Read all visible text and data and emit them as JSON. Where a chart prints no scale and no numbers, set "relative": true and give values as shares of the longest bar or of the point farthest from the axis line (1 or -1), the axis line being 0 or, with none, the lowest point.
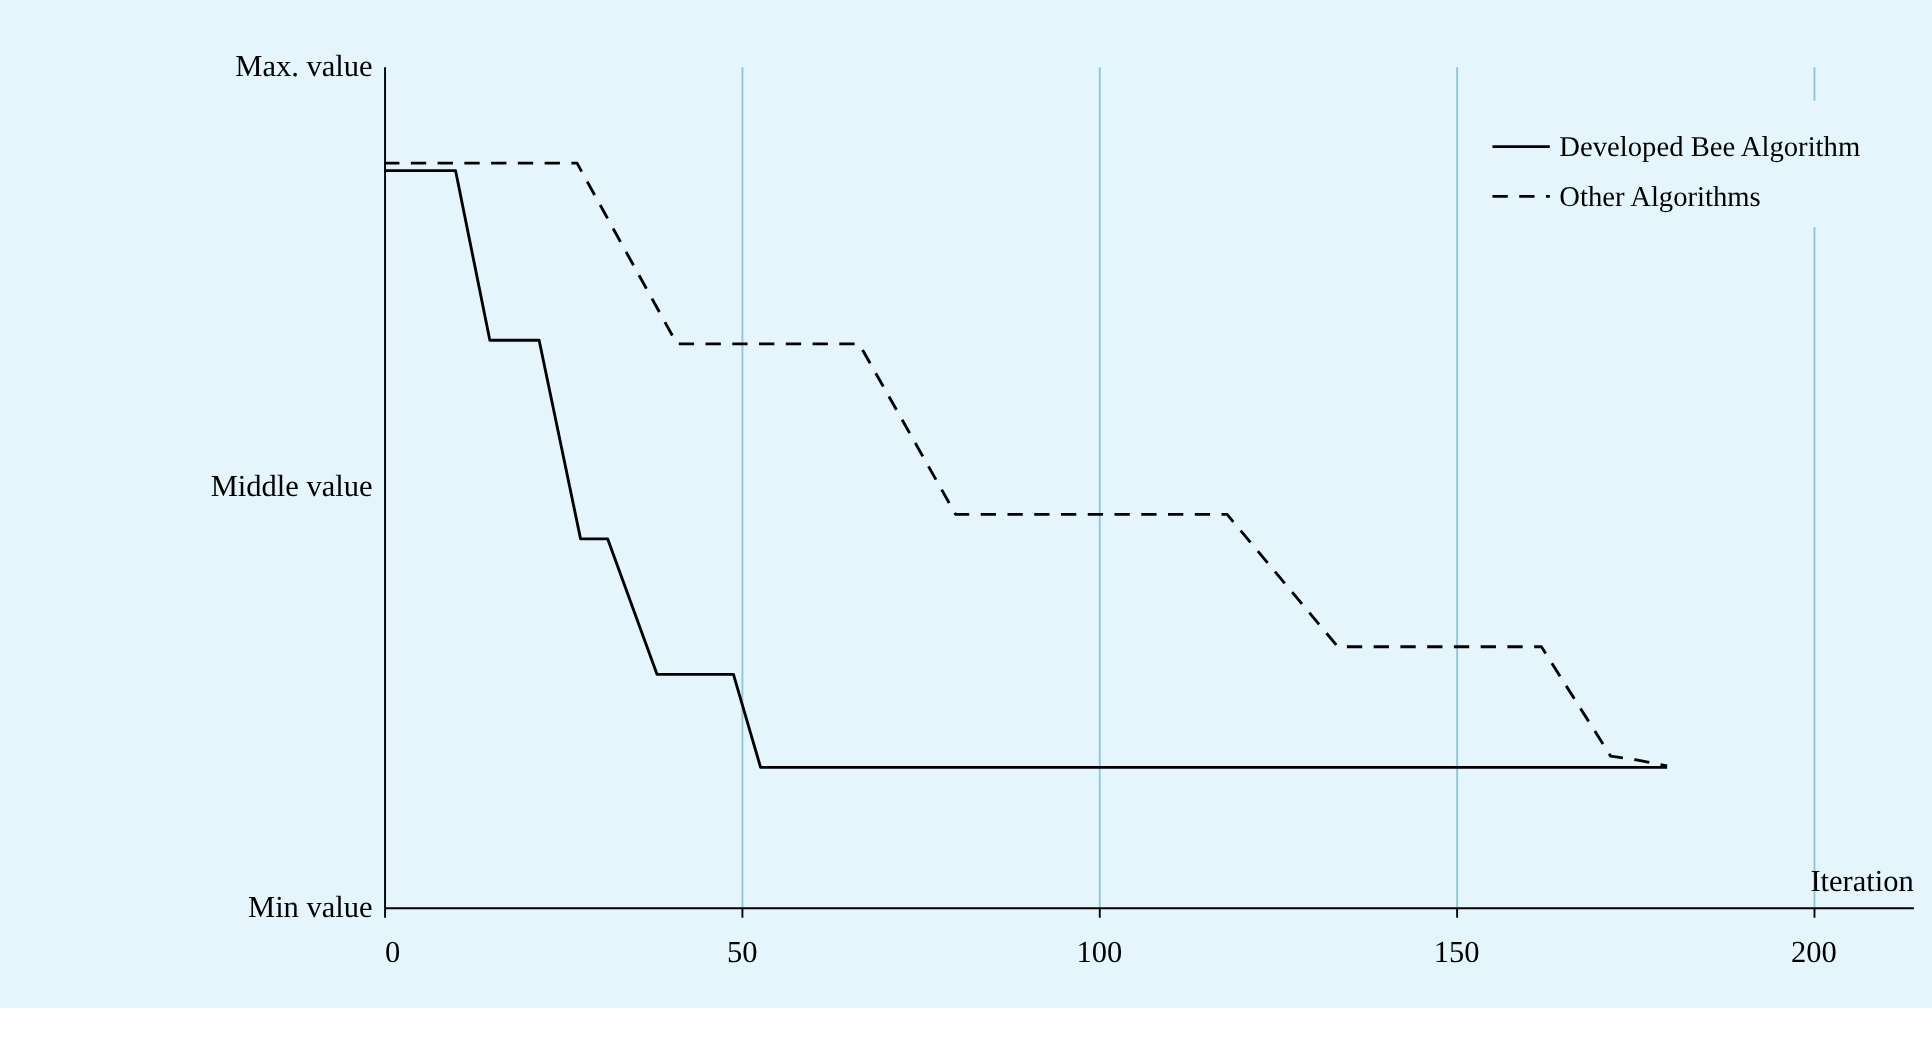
{
  "chart_data": {
    "type": "line",
    "xlabel": "Iteration",
    "relative": true,
    "xlim": [
      0,
      214
    ],
    "xticks": [
      0,
      50,
      100,
      150,
      200
    ],
    "annotations": [
      "Max. value",
      "Middle value",
      "Min value"
    ],
    "grid": "x",
    "legend": "top right",
    "series": [
      {
        "name": "Developed Bee Algorithm",
        "color": "#000000",
        "line_style": "solid",
        "x": [
          0,
          10,
          14.8,
          21.7,
          27.5,
          31.3,
          38.2,
          48.9,
          52.7,
          179.6
        ],
        "values": [
          0.99,
          0.99,
          0.762,
          0.762,
          0.495,
          0.495,
          0.313,
          0.313,
          0.188,
          0.188
        ]
      },
      {
        "name": "Other Algorithms",
        "color": "#000000",
        "line_style": "dashed",
        "x": [
          0,
          27,
          41,
          66.5,
          80,
          118,
          133.5,
          162,
          171.7,
          175.3,
          179.6
        ],
        "values": [
          1,
          1,
          0.757,
          0.757,
          0.528,
          0.528,
          0.35,
          0.35,
          0.203,
          0.198,
          0.19
        ]
      }
    ]
  }
}
